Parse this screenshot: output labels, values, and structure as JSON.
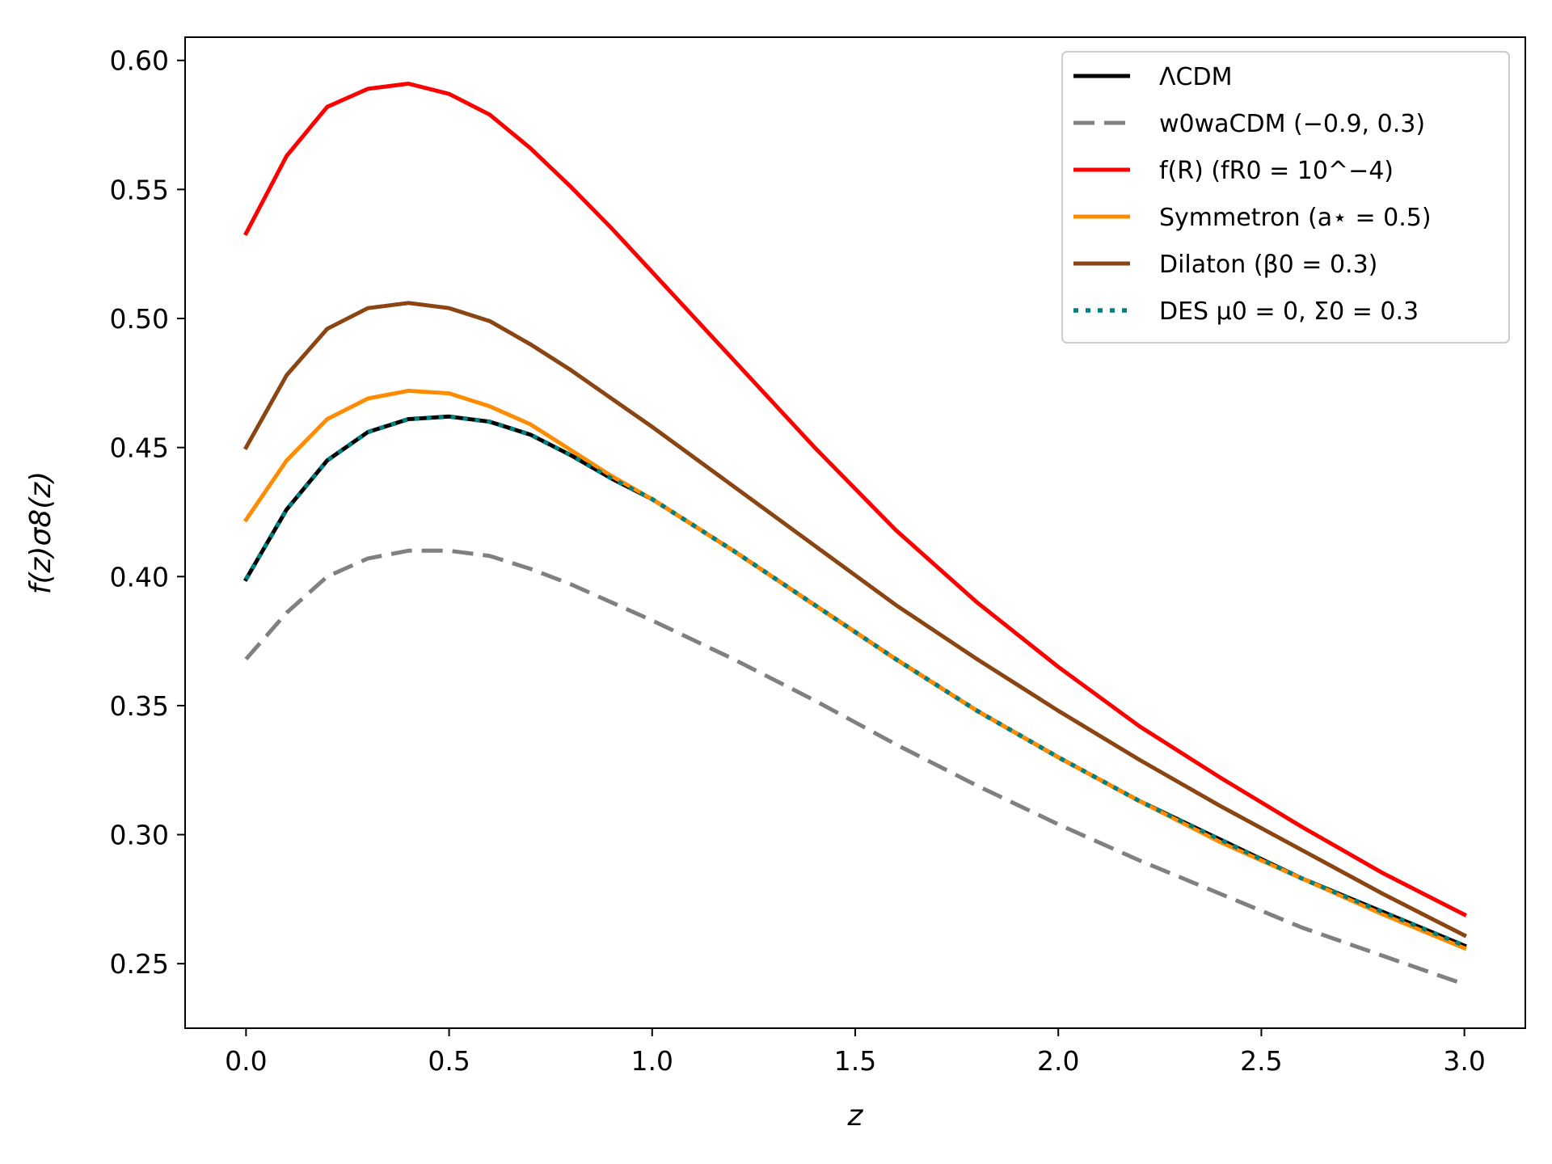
{
  "chart_data": {
    "type": "line",
    "xlabel": "z",
    "ylabel": "f(z)σ8(z)",
    "xlim": [
      -0.15,
      3.15
    ],
    "ylim": [
      0.225,
      0.609
    ],
    "xticks": [
      0.0,
      0.5,
      1.0,
      1.5,
      2.0,
      2.5,
      3.0
    ],
    "xtick_labels": [
      "0.0",
      "0.5",
      "1.0",
      "1.5",
      "2.0",
      "2.5",
      "3.0"
    ],
    "yticks": [
      0.25,
      0.3,
      0.35,
      0.4,
      0.45,
      0.5,
      0.55,
      0.6
    ],
    "ytick_labels": [
      "0.25",
      "0.30",
      "0.35",
      "0.40",
      "0.45",
      "0.50",
      "0.55",
      "0.60"
    ],
    "grid": false,
    "legend_position": "top-right",
    "x": [
      0.0,
      0.1,
      0.2,
      0.3,
      0.4,
      0.5,
      0.6,
      0.7,
      0.8,
      0.9,
      1.0,
      1.2,
      1.4,
      1.6,
      1.8,
      2.0,
      2.2,
      2.4,
      2.6,
      2.8,
      3.0
    ],
    "series": [
      {
        "name": "ΛCDM",
        "color": "#000000",
        "style": "solid",
        "values": [
          0.399,
          0.426,
          0.445,
          0.456,
          0.461,
          0.462,
          0.46,
          0.455,
          0.447,
          0.438,
          0.43,
          0.41,
          0.389,
          0.368,
          0.348,
          0.33,
          0.313,
          0.298,
          0.283,
          0.27,
          0.257
        ]
      },
      {
        "name": "w0waCDM (−0.9, 0.3)",
        "color": "#808080",
        "style": "dashed",
        "values": [
          0.368,
          0.386,
          0.4,
          0.407,
          0.41,
          0.41,
          0.408,
          0.403,
          0.397,
          0.39,
          0.383,
          0.368,
          0.352,
          0.335,
          0.319,
          0.304,
          0.29,
          0.277,
          0.264,
          0.253,
          0.242
        ]
      },
      {
        "name": "f(R) (fR0 = 10^−4)",
        "color": "#ff0000",
        "style": "solid",
        "values": [
          0.533,
          0.563,
          0.582,
          0.589,
          0.591,
          0.587,
          0.579,
          0.566,
          0.551,
          0.535,
          0.518,
          0.484,
          0.45,
          0.418,
          0.39,
          0.365,
          0.342,
          0.322,
          0.303,
          0.285,
          0.269
        ]
      },
      {
        "name": "Symmetron (a⋆ = 0.5)",
        "color": "#ff8c00",
        "style": "solid",
        "values": [
          0.422,
          0.445,
          0.461,
          0.469,
          0.472,
          0.471,
          0.466,
          0.459,
          0.449,
          0.439,
          0.43,
          0.41,
          0.389,
          0.368,
          0.348,
          0.33,
          0.313,
          0.297,
          0.283,
          0.269,
          0.256
        ]
      },
      {
        "name": "Dilaton (β0 = 0.3)",
        "color": "#8b4513",
        "style": "solid",
        "values": [
          0.45,
          0.478,
          0.496,
          0.504,
          0.506,
          0.504,
          0.499,
          0.49,
          0.48,
          0.469,
          0.458,
          0.435,
          0.412,
          0.389,
          0.368,
          0.348,
          0.329,
          0.311,
          0.294,
          0.277,
          0.261
        ]
      },
      {
        "name": "DES μ0 = 0, Σ0 = 0.3",
        "color": "#008080",
        "style": "dotted",
        "values": [
          0.399,
          0.426,
          0.445,
          0.456,
          0.461,
          0.462,
          0.46,
          0.455,
          0.447,
          0.438,
          0.43,
          0.41,
          0.389,
          0.368,
          0.348,
          0.33,
          0.313,
          0.298,
          0.283,
          0.27,
          0.257
        ]
      }
    ]
  }
}
